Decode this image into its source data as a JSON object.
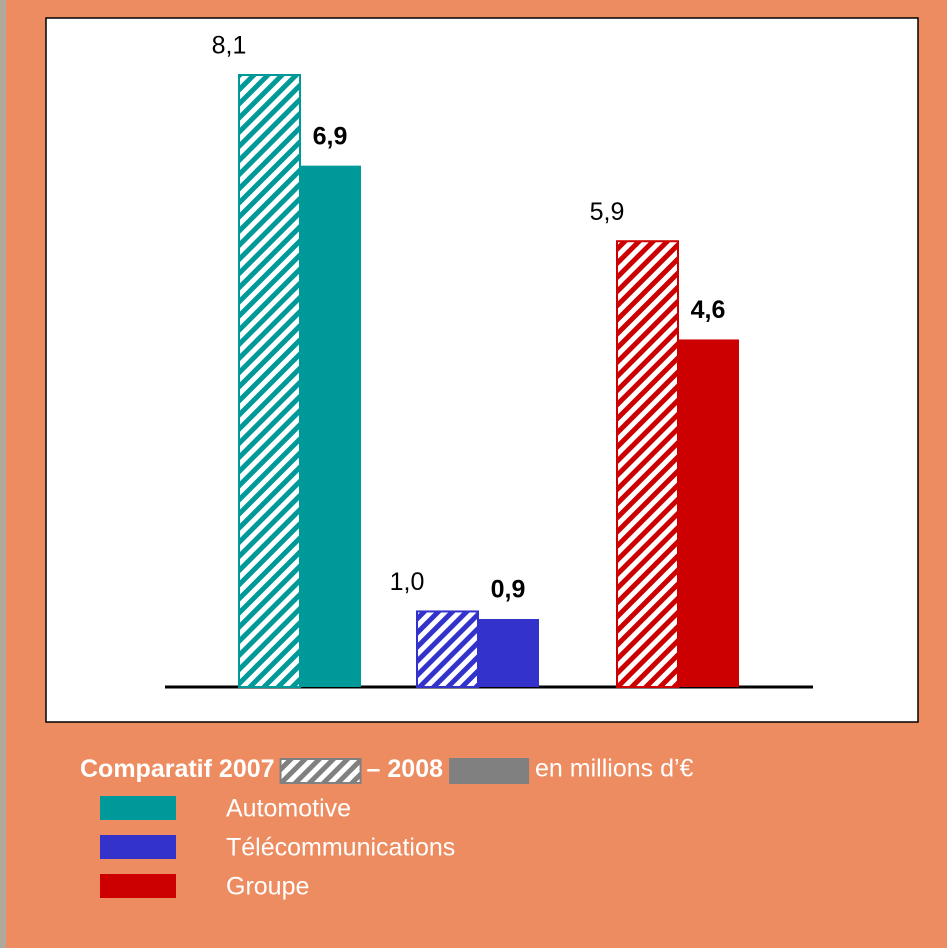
{
  "chart_data": {
    "type": "bar",
    "categories": [
      "Automotive",
      "Télécommunications",
      "Groupe"
    ],
    "category_colors": [
      "#009999",
      "#3333cc",
      "#cc0000"
    ],
    "series": [
      {
        "name": "2007",
        "style": "hatched",
        "color": "#808080",
        "values": [
          8.1,
          1.0,
          5.9
        ],
        "value_labels": [
          "8,1",
          "1,0",
          "5,9"
        ]
      },
      {
        "name": "2008",
        "style": "solid",
        "color": "#808080",
        "values": [
          6.9,
          0.9,
          4.6
        ],
        "value_labels": [
          "6,9",
          "0,9",
          "4,6"
        ]
      }
    ],
    "legend_prefix": "Comparatif",
    "legend_separator": "–",
    "legend_suffix": "en millions d’€"
  }
}
